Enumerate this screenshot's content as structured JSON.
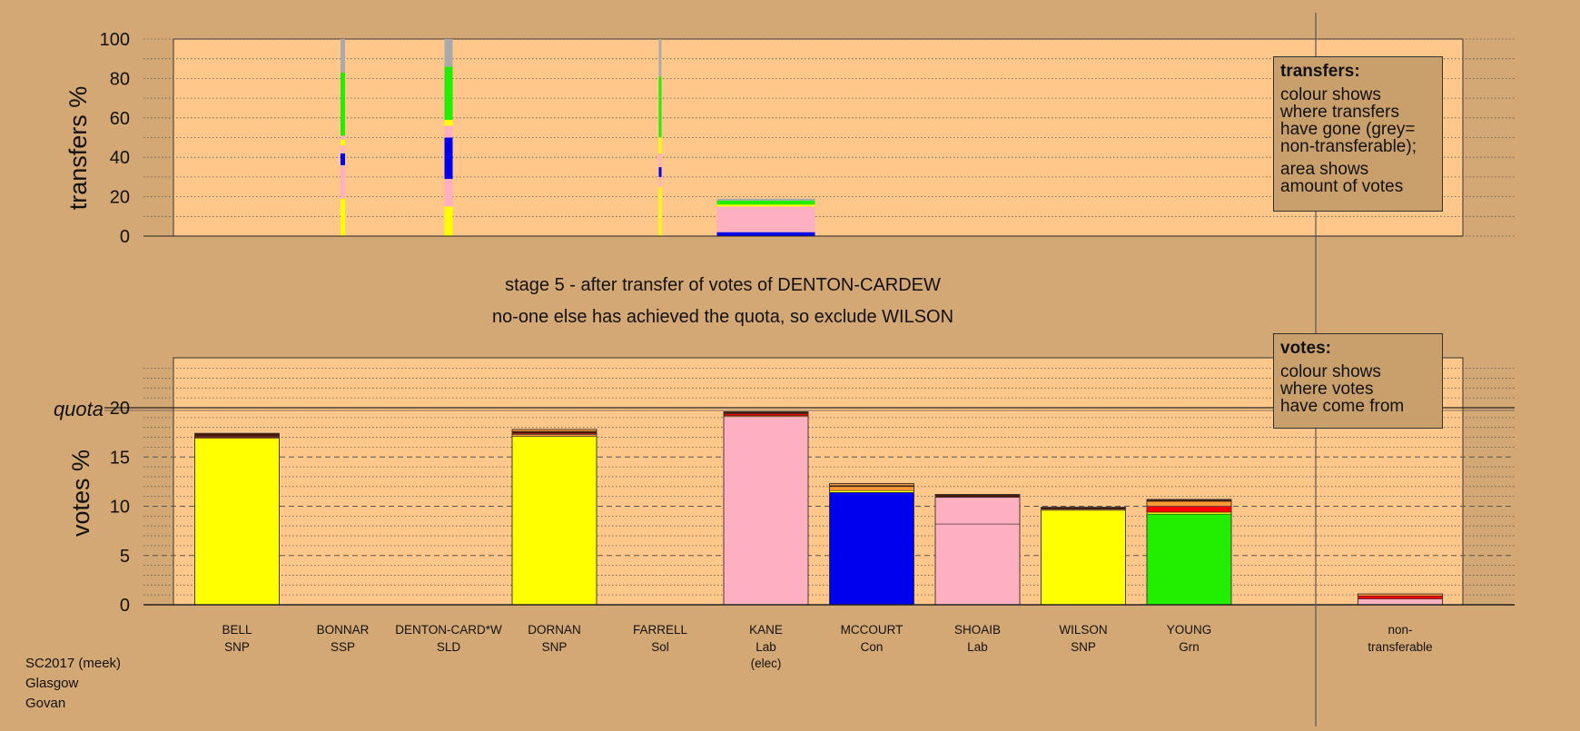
{
  "info": [
    "SC2017 (meek)",
    "Glasgow",
    "Govan"
  ],
  "stage_title": "stage 5 - after transfer of votes of DENTON-CARDEW",
  "stage_subtitle": "no-one else has achieved the quota, so exclude WILSON",
  "legends": {
    "transfers": {
      "title": "transfers:",
      "lines": [
        "colour shows",
        "where transfers",
        "have gone (grey=",
        "non-transferable);"
      ],
      "lines2": [
        "area shows",
        "amount of votes"
      ]
    },
    "votes": {
      "title": "votes:",
      "lines": [
        "colour shows",
        "where votes",
        "have come from"
      ]
    }
  },
  "colors": {
    "background": "#d4a874",
    "plot_bg": "#ffc88a",
    "SNP": "#ffff00",
    "Lab": "#ffb0c0",
    "Con": "#0000ee",
    "Grn": "#22ee00",
    "SSP": "#ff0000",
    "Sol": "#990000",
    "SLD": "#ff9933",
    "grey": "#aaaaaa",
    "dark": "#4a1a00"
  },
  "chart_data": [
    {
      "type": "bar",
      "subtype": "stacked",
      "ylabel": "transfers %",
      "ylim": [
        0,
        100
      ],
      "yticks": [
        0,
        20,
        40,
        60,
        80,
        100
      ],
      "grid": true,
      "legend_position": "top-right",
      "bars": [
        {
          "candidate": "BONNAR",
          "segments": [
            {
              "color": "SNP",
              "value": 19
            },
            {
              "color": "Lab",
              "value": 17
            },
            {
              "color": "Con",
              "value": 6
            },
            {
              "color": "Lab",
              "value": 4
            },
            {
              "color": "SNP",
              "value": 3
            },
            {
              "color": "Lab",
              "value": 2
            },
            {
              "color": "Grn",
              "value": 32
            },
            {
              "color": "grey",
              "value": 17
            }
          ]
        },
        {
          "candidate": "DENTON-CARD*W",
          "segments": [
            {
              "color": "SNP",
              "value": 15
            },
            {
              "color": "Lab",
              "value": 14
            },
            {
              "color": "Con",
              "value": 21
            },
            {
              "color": "Lab",
              "value": 6
            },
            {
              "color": "SNP",
              "value": 3
            },
            {
              "color": "Grn",
              "value": 27
            },
            {
              "color": "grey",
              "value": 14
            }
          ]
        },
        {
          "candidate": "FARRELL",
          "segments": [
            {
              "color": "SNP",
              "value": 25
            },
            {
              "color": "Lab",
              "value": 5
            },
            {
              "color": "Con",
              "value": 5
            },
            {
              "color": "Lab",
              "value": 7
            },
            {
              "color": "SNP",
              "value": 8
            },
            {
              "color": "Grn",
              "value": 31
            },
            {
              "color": "grey",
              "value": 19
            }
          ]
        },
        {
          "candidate": "KANE",
          "segments": [
            {
              "color": "Con",
              "value": 2
            },
            {
              "color": "Lab",
              "value": 13
            },
            {
              "color": "SNP",
              "value": 1
            },
            {
              "color": "Grn",
              "value": 2
            },
            {
              "color": "grey",
              "value": 1
            }
          ]
        }
      ]
    },
    {
      "type": "bar",
      "subtype": "stacked",
      "ylabel": "votes %",
      "ylim": [
        0,
        25
      ],
      "yticks": [
        0,
        5,
        10,
        15,
        20
      ],
      "quota": 20,
      "quota_label": "quota",
      "grid": true,
      "legend_position": "top-right",
      "categories": [
        {
          "name": "BELL",
          "party": "SNP",
          "note": ""
        },
        {
          "name": "BONNAR",
          "party": "SSP",
          "note": ""
        },
        {
          "name": "DENTON-CARD*W",
          "party": "SLD",
          "note": ""
        },
        {
          "name": "DORNAN",
          "party": "SNP",
          "note": ""
        },
        {
          "name": "FARRELL",
          "party": "Sol",
          "note": ""
        },
        {
          "name": "KANE",
          "party": "Lab",
          "note": "(elec)"
        },
        {
          "name": "MCCOURT",
          "party": "Con",
          "note": ""
        },
        {
          "name": "SHOAIB",
          "party": "Lab",
          "note": ""
        },
        {
          "name": "WILSON",
          "party": "SNP",
          "note": ""
        },
        {
          "name": "YOUNG",
          "party": "Grn",
          "note": ""
        }
      ],
      "stacks": [
        [
          {
            "color": "SNP",
            "value": 16.9
          },
          {
            "color": "SLD",
            "value": 0.1
          },
          {
            "color": "SSP",
            "value": 0.1
          },
          {
            "color": "dark",
            "value": 0.3
          }
        ],
        [],
        [],
        [
          {
            "color": "SNP",
            "value": 17.1
          },
          {
            "color": "SLD",
            "value": 0.2
          },
          {
            "color": "SSP",
            "value": 0.1
          },
          {
            "color": "dark",
            "value": 0.2
          },
          {
            "color": "SLD",
            "value": 0.2
          }
        ],
        [],
        [
          {
            "color": "Lab",
            "value": 19.1
          },
          {
            "color": "SLD",
            "value": 0.1
          },
          {
            "color": "SSP",
            "value": 0.2
          },
          {
            "color": "dark",
            "value": 0.2
          }
        ],
        [
          {
            "color": "Con",
            "value": 11.4
          },
          {
            "color": "SNP",
            "value": 0.2
          },
          {
            "color": "SLD",
            "value": 0.4
          },
          {
            "color": "dark",
            "value": 0.1
          },
          {
            "color": "SLD",
            "value": 0.2
          }
        ],
        [
          {
            "color": "Lab",
            "value": 8.2
          },
          {
            "color": "Lab",
            "value": 2.7
          },
          {
            "color": "dark",
            "value": 0.3
          }
        ],
        [
          {
            "color": "SNP",
            "value": 9.6
          },
          {
            "color": "SLD",
            "value": 0.1
          },
          {
            "color": "dark",
            "value": 0.2
          }
        ],
        [
          {
            "color": "Grn",
            "value": 9.2
          },
          {
            "color": "SNP",
            "value": 0.2
          },
          {
            "color": "SSP",
            "value": 0.6
          },
          {
            "color": "SLD",
            "value": 0.5
          },
          {
            "color": "dark",
            "value": 0.2
          }
        ]
      ],
      "nontransferable": {
        "label1": "non-",
        "label2": "transferable",
        "stack": [
          {
            "color": "Lab",
            "value": 0.6
          },
          {
            "color": "SSP",
            "value": 0.3
          },
          {
            "color": "SLD",
            "value": 0.2
          }
        ]
      }
    }
  ]
}
